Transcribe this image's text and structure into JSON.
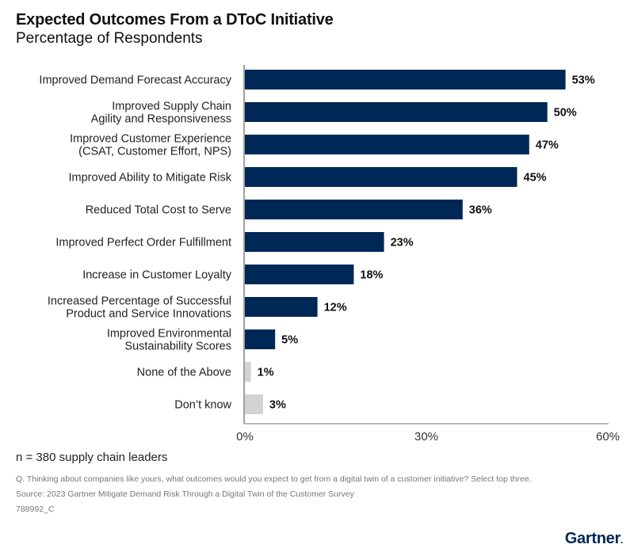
{
  "header": {
    "title": "Expected Outcomes From a DToC Initiative",
    "subtitle": "Percentage of Respondents"
  },
  "chart_data": {
    "type": "bar",
    "orientation": "horizontal",
    "title": "Expected Outcomes From a DToC Initiative",
    "subtitle": "Percentage of Respondents",
    "xlabel": "",
    "ylabel": "",
    "xlim": [
      0,
      60
    ],
    "ticks": [
      0,
      30,
      60
    ],
    "tick_labels": [
      "0%",
      "30%",
      "60%"
    ],
    "grid": false,
    "unit": "%",
    "categories": [
      [
        "Improved Demand Forecast Accuracy"
      ],
      [
        "Improved Supply Chain",
        "Agility and Responsiveness"
      ],
      [
        "Improved Customer Experience",
        "(CSAT, Customer Effort, NPS)"
      ],
      [
        "Improved Ability to Mitigate Risk"
      ],
      [
        "Reduced Total Cost to Serve"
      ],
      [
        "Improved Perfect Order Fulfillment"
      ],
      [
        "Increase in Customer Loyalty"
      ],
      [
        "Increased Percentage of Successful",
        "Product and Service Innovations"
      ],
      [
        "Improved Environmental",
        "Sustainability Scores"
      ],
      [
        "None of the Above"
      ],
      [
        "Don’t know"
      ]
    ],
    "values": [
      53,
      50,
      47,
      45,
      36,
      23,
      18,
      12,
      5,
      1,
      3
    ],
    "value_labels": [
      "53%",
      "50%",
      "47%",
      "45%",
      "36%",
      "23%",
      "18%",
      "12%",
      "5%",
      "1%",
      "3%"
    ],
    "bar_colors": [
      "#002856",
      "#002856",
      "#002856",
      "#002856",
      "#002856",
      "#002856",
      "#002856",
      "#002856",
      "#002856",
      "#d3d3d3",
      "#d3d3d3"
    ]
  },
  "footer": {
    "sample": "n = 380 supply chain leaders",
    "question": "Q. Thinking about companies like yours, what outcomes would you expect to get from a digital twin of a customer initiative? Select top three.",
    "source": "Source: 2023 Gartner Mitigate Demand Risk Through a Digital Twin of the Customer Survey",
    "code": "788992_C",
    "logo": "Gartner",
    "logo_dot": "."
  },
  "colors": {
    "primary_bar": "#002856",
    "secondary_bar": "#d3d3d3",
    "axis": "#a0a0a0"
  }
}
